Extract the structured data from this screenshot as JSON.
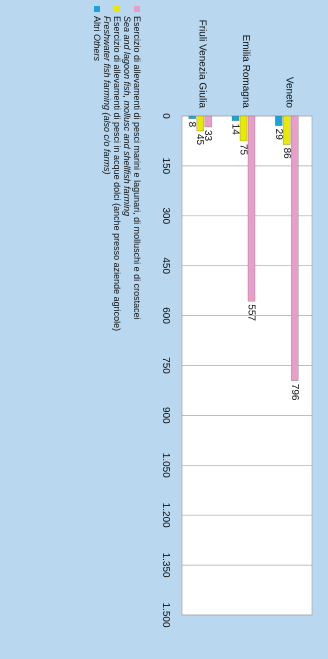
{
  "chart_data": {
    "type": "bar",
    "orientation": "horizontal",
    "categories": [
      "Veneto",
      "Emilia Romagna",
      "Friuli Venezia Giulia"
    ],
    "series": [
      {
        "name": "Esercizio di allevamenti di pesci marini e lagunari, di molluschi e di crostacei",
        "name_en": "Sea and lagoon fish, mollusc and shellfish farming",
        "color": "#e89ec8",
        "values": [
          796,
          557,
          33
        ]
      },
      {
        "name": "Esercizio di allevamenti di pesci in acque dolci (anche presso aziende agricole)",
        "name_en": "Freshwater fish farming (also c/o farms)",
        "color": "#e8e800",
        "values": [
          86,
          75,
          45
        ]
      },
      {
        "name": "Altri",
        "name_en": "Others",
        "color": "#1aa3dc",
        "values": [
          29,
          14,
          8
        ]
      }
    ],
    "xlim": [
      0,
      1500
    ],
    "xticks": [
      "0",
      "150",
      "300",
      "450",
      "600",
      "750",
      "900",
      "1.050",
      "1.200",
      "1.350",
      "1.500"
    ],
    "grid": true,
    "legend_position": "bottom-left",
    "title": "",
    "xlabel": "",
    "ylabel": ""
  }
}
